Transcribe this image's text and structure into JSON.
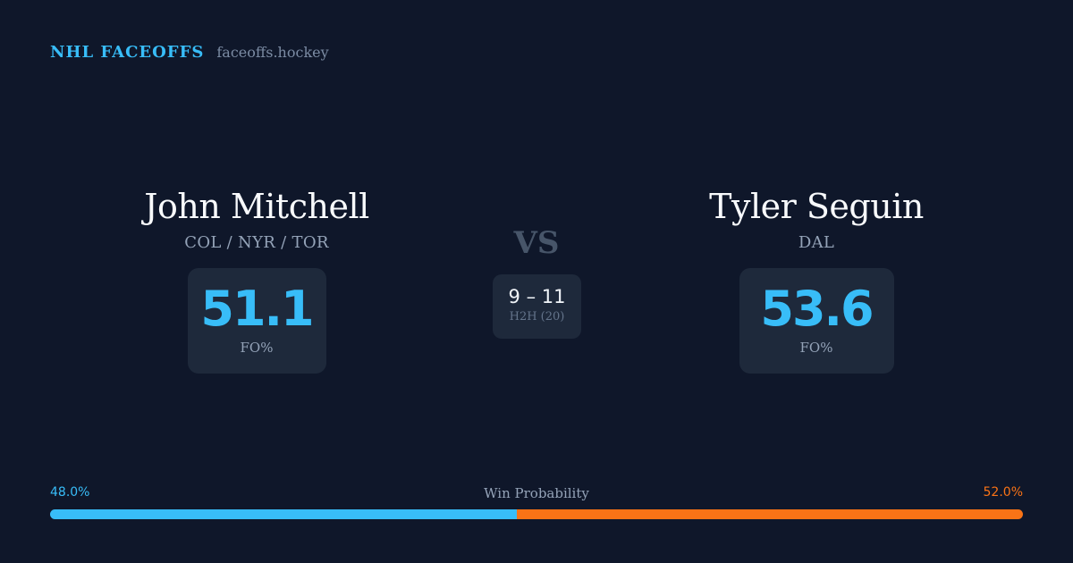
{
  "header": {
    "brand": "NHL FACEOFFS",
    "domain": "faceoffs.hockey"
  },
  "player_left": {
    "name": "John Mitchell",
    "teams": "COL / NYR / TOR",
    "stat_value": "51.1",
    "stat_label": "FO%"
  },
  "player_right": {
    "name": "Tyler Seguin",
    "teams": "DAL",
    "stat_value": "53.6",
    "stat_label": "FO%"
  },
  "matchup": {
    "vs": "VS",
    "h2h_score": "9 – 11",
    "h2h_label": "H2H (20)"
  },
  "win_probability": {
    "title": "Win Probability",
    "left_label": "48.0%",
    "right_label": "52.0%",
    "left_value": 48.0,
    "right_value": 52.0,
    "left_color": "#38bdf8",
    "right_color": "#f97316"
  }
}
